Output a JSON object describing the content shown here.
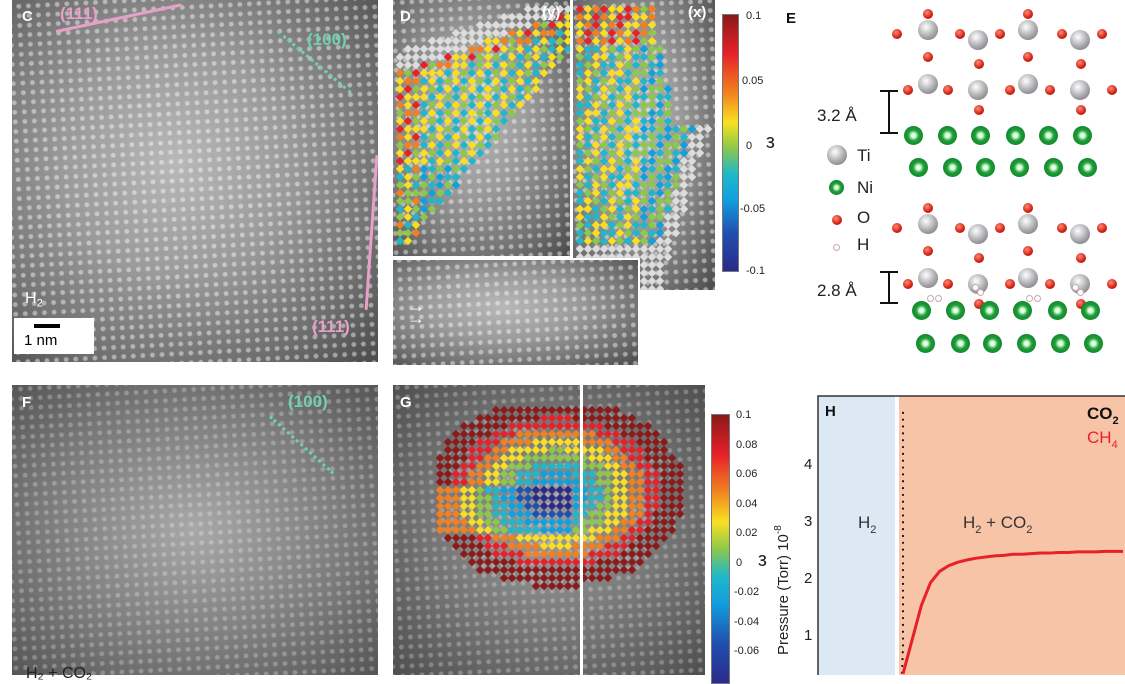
{
  "panels": {
    "C": {
      "label": "C",
      "facets": [
        "(111)",
        "(100)",
        "(111)"
      ],
      "condition": "H",
      "condition_sub": "2",
      "scale_bar": "1 nm"
    },
    "D": {
      "label": "D",
      "views": [
        "(y)",
        "(x)"
      ],
      "colorbar": {
        "ticks": [
          "0.1",
          "0.05",
          "0",
          "-0.05",
          "-0.1"
        ],
        "symbol": "ε"
      }
    },
    "E": {
      "label": "E",
      "spacings": [
        "3.2 Å",
        "2.8 Å"
      ],
      "legend": [
        "Ti",
        "Ni",
        "O",
        "H"
      ]
    },
    "F": {
      "label": "F",
      "facets": [
        "(100)"
      ],
      "condition": "H₂ + CO₂"
    },
    "G": {
      "label": "G",
      "colorbar": {
        "ticks": [
          "0.1",
          "0.08",
          "0.06",
          "0.04",
          "0.02",
          "0",
          "-0.02",
          "-0.04",
          "-0.06"
        ],
        "symbol": "ε"
      }
    },
    "H": {
      "label": "H"
    }
  },
  "colors": {
    "facet_111": "#e8a0c8",
    "facet_100": "#70d0b0",
    "co2": "#111111",
    "ch4": "#e8202a",
    "h2_region": "#dce9f5",
    "h2co2_region": "#f8c4a8"
  },
  "chart_data": {
    "type": "line",
    "title": "",
    "ylabel": "Pressure (Torr) 10",
    "ylabel_exp": "-8",
    "xlabel": "",
    "ylim": [
      0,
      5
    ],
    "yticks": [
      "1",
      "2",
      "3",
      "4"
    ],
    "regions": [
      {
        "label": "H",
        "label_sub": "2"
      },
      {
        "label": "H",
        "label_sub": "2",
        "label_rest": " + CO",
        "label_rest_sub": "2"
      }
    ],
    "legend": [
      {
        "name": "CO",
        "sub": "2"
      },
      {
        "name": "CH",
        "sub": "4"
      }
    ],
    "legend_placement": "top-right",
    "series": [
      {
        "name": "CH4",
        "values": [
          0.3,
          0.9,
          1.5,
          1.9,
          2.1,
          2.2,
          2.26,
          2.3,
          2.33,
          2.35,
          2.37,
          2.38,
          2.4,
          2.4,
          2.41,
          2.42,
          2.42,
          2.43,
          2.43,
          2.44,
          2.44,
          2.44,
          2.45,
          2.45,
          2.45
        ]
      },
      {
        "name": "CO2",
        "values": [
          0.2,
          4.9
        ]
      }
    ]
  }
}
